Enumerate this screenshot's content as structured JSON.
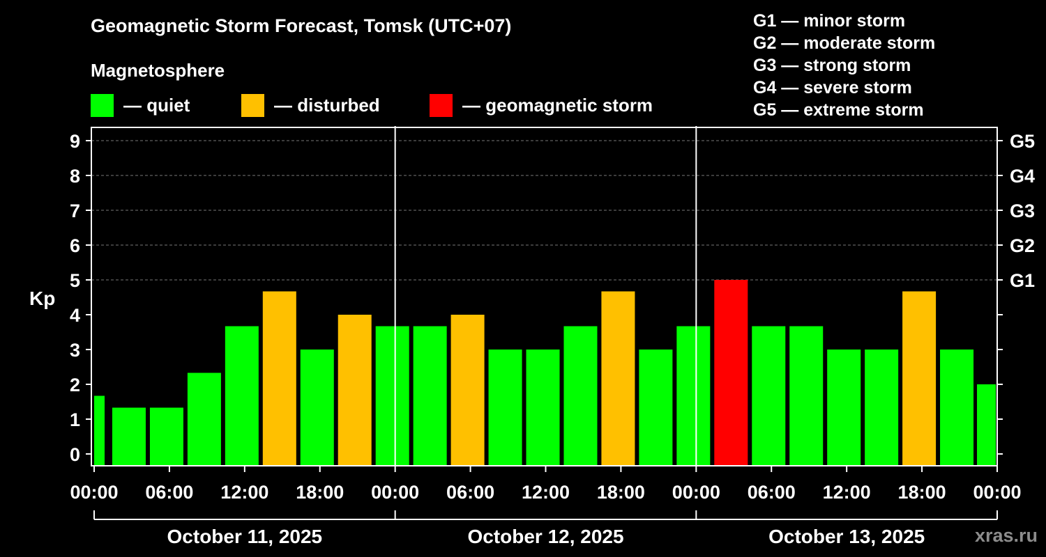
{
  "chart_data": {
    "type": "bar",
    "title": "Geomagnetic Storm Forecast, Tomsk (UTC+07)",
    "subtitle": "Magnetosphere",
    "ylabel": "Kp",
    "ylim": [
      0,
      9
    ],
    "yticks": [
      "0",
      "1",
      "2",
      "3",
      "4",
      "5",
      "6",
      "7",
      "8",
      "9"
    ],
    "right_ticks": [
      {
        "kp": 5,
        "label": "G1"
      },
      {
        "kp": 6,
        "label": "G2"
      },
      {
        "kp": 7,
        "label": "G3"
      },
      {
        "kp": 8,
        "label": "G4"
      },
      {
        "kp": 9,
        "label": "G5"
      }
    ],
    "xtick_labels": [
      "00:00",
      "06:00",
      "12:00",
      "18:00",
      "00:00",
      "06:00",
      "12:00",
      "18:00",
      "00:00",
      "06:00",
      "12:00",
      "18:00",
      "00:00"
    ],
    "days": [
      "October 11, 2025",
      "October 12, 2025",
      "October 13, 2025"
    ],
    "legend": [
      {
        "status": "quiet",
        "label": "— quiet",
        "color": "#00ff00"
      },
      {
        "status": "disturbed",
        "label": "— disturbed",
        "color": "#ffc000"
      },
      {
        "status": "storm",
        "label": "— geomagnetic storm",
        "color": "#ff0000"
      }
    ],
    "scale": [
      "G1 — minor storm",
      "G2 — moderate storm",
      "G3 — strong storm",
      "G4 — severe storm",
      "G5 — extreme storm"
    ],
    "grid": true,
    "bars": [
      {
        "start_hour": 0,
        "end_hour": 1.5,
        "kp": 1.67,
        "status": "quiet"
      },
      {
        "start_hour": 1.5,
        "kp": 1.33,
        "status": "quiet"
      },
      {
        "start_hour": 4.5,
        "kp": 1.33,
        "status": "quiet"
      },
      {
        "start_hour": 7.5,
        "kp": 2.33,
        "status": "quiet"
      },
      {
        "start_hour": 10.5,
        "kp": 3.67,
        "status": "quiet"
      },
      {
        "start_hour": 13.5,
        "kp": 4.67,
        "status": "disturbed"
      },
      {
        "start_hour": 16.5,
        "kp": 3.0,
        "status": "quiet"
      },
      {
        "start_hour": 19.5,
        "kp": 4.0,
        "status": "disturbed"
      },
      {
        "start_hour": 22.5,
        "kp": 3.67,
        "status": "quiet"
      },
      {
        "start_hour": 25.5,
        "kp": 3.67,
        "status": "quiet"
      },
      {
        "start_hour": 28.5,
        "kp": 4.0,
        "status": "disturbed"
      },
      {
        "start_hour": 31.5,
        "kp": 3.0,
        "status": "quiet"
      },
      {
        "start_hour": 34.5,
        "kp": 3.0,
        "status": "quiet"
      },
      {
        "start_hour": 37.5,
        "kp": 3.67,
        "status": "quiet"
      },
      {
        "start_hour": 40.5,
        "kp": 4.67,
        "status": "disturbed"
      },
      {
        "start_hour": 43.5,
        "kp": 3.0,
        "status": "quiet"
      },
      {
        "start_hour": 46.5,
        "kp": 3.67,
        "status": "quiet"
      },
      {
        "start_hour": 49.5,
        "kp": 5.0,
        "status": "storm"
      },
      {
        "start_hour": 52.5,
        "kp": 3.67,
        "status": "quiet"
      },
      {
        "start_hour": 55.5,
        "kp": 3.67,
        "status": "quiet"
      },
      {
        "start_hour": 58.5,
        "kp": 3.0,
        "status": "quiet"
      },
      {
        "start_hour": 61.5,
        "kp": 3.0,
        "status": "quiet"
      },
      {
        "start_hour": 64.5,
        "kp": 4.67,
        "status": "disturbed"
      },
      {
        "start_hour": 67.5,
        "kp": 3.0,
        "status": "quiet"
      },
      {
        "start_hour": 70.5,
        "end_hour": 72,
        "kp": 2.0,
        "status": "quiet"
      }
    ]
  },
  "watermark": "xras.ru"
}
